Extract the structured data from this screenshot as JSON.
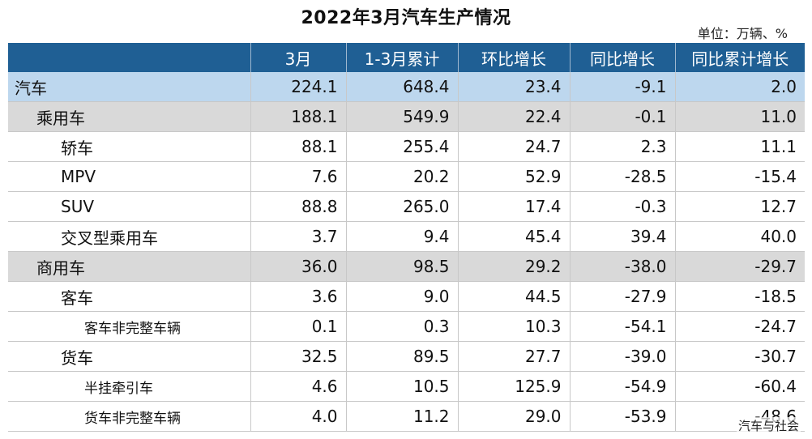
{
  "title": "2022年3月汽车生产情况",
  "unit": "单位：万辆、%",
  "columns": [
    "",
    "3月",
    "1-3月累计",
    "环比增长",
    "同比增长",
    "同比累计增长"
  ],
  "rows": [
    {
      "label": "汽车",
      "level": 0,
      "values": [
        "224.1",
        "648.4",
        "23.4",
        "-9.1",
        "2.0"
      ]
    },
    {
      "label": "乘用车",
      "level": 1,
      "values": [
        "188.1",
        "549.9",
        "22.4",
        "-0.1",
        "11.0"
      ]
    },
    {
      "label": "轿车",
      "level": 2,
      "values": [
        "88.1",
        "255.4",
        "24.7",
        "2.3",
        "11.1"
      ]
    },
    {
      "label": "MPV",
      "level": 2,
      "values": [
        "7.6",
        "20.2",
        "52.9",
        "-28.5",
        "-15.4"
      ]
    },
    {
      "label": "SUV",
      "level": 2,
      "values": [
        "88.8",
        "265.0",
        "17.4",
        "-0.3",
        "12.7"
      ]
    },
    {
      "label": "交叉型乘用车",
      "level": 2,
      "values": [
        "3.7",
        "9.4",
        "45.4",
        "39.4",
        "40.0"
      ]
    },
    {
      "label": "商用车",
      "level": 1,
      "values": [
        "36.0",
        "98.5",
        "29.2",
        "-38.0",
        "-29.7"
      ]
    },
    {
      "label": "客车",
      "level": 3,
      "values": [
        "3.6",
        "9.0",
        "44.5",
        "-27.9",
        "-18.5"
      ]
    },
    {
      "label": "客车非完整车辆",
      "level": 4,
      "values": [
        "0.1",
        "0.3",
        "10.3",
        "-54.1",
        "-24.7"
      ]
    },
    {
      "label": "货车",
      "level": 3,
      "values": [
        "32.5",
        "89.5",
        "27.7",
        "-39.0",
        "-30.7"
      ]
    },
    {
      "label": "半挂牵引车",
      "level": 4,
      "values": [
        "4.6",
        "10.5",
        "125.9",
        "-54.9",
        "-60.4"
      ]
    },
    {
      "label": "货车非完整车辆",
      "level": 4,
      "values": [
        "4.0",
        "11.2",
        "29.0",
        "-53.9",
        "-48.6"
      ]
    }
  ],
  "watermark": "汽车与社会",
  "colors": {
    "header_bg": "#1f5f94",
    "total_row_bg": "#bdd7ee",
    "group_row_bg": "#d9d9d9"
  }
}
